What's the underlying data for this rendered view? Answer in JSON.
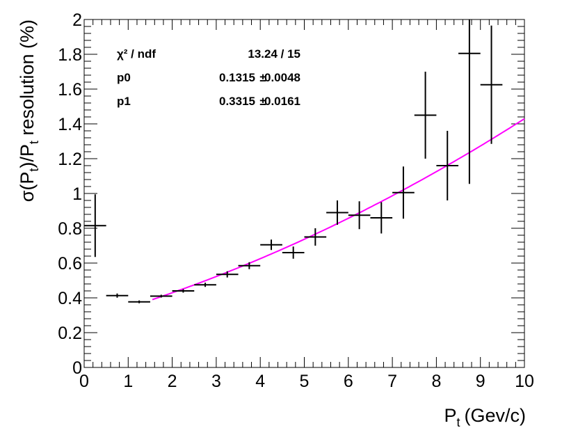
{
  "chart_data": {
    "type": "scatter",
    "xlabel": "P",
    "xlabel_sub": "t",
    "xlabel_unit": "(Gev/c)",
    "ylabel_parts": [
      "σ(P",
      "t",
      ")/P",
      "t",
      " resolution (%)"
    ],
    "xlim": [
      0,
      10
    ],
    "ylim": [
      0,
      2
    ],
    "x_ticks": [
      "0",
      "1",
      "2",
      "3",
      "4",
      "5",
      "6",
      "7",
      "8",
      "9",
      "10"
    ],
    "y_ticks": [
      "0",
      "0.2",
      "0.4",
      "0.6",
      "0.8",
      "1",
      "1.2",
      "1.4",
      "1.6",
      "1.8",
      "2"
    ],
    "x_tick_values": [
      0,
      1,
      2,
      3,
      4,
      5,
      6,
      7,
      8,
      9,
      10
    ],
    "y_tick_values": [
      0,
      0.2,
      0.4,
      0.6,
      0.8,
      1.0,
      1.2,
      1.4,
      1.6,
      1.8,
      2.0
    ],
    "grid": false,
    "points": [
      {
        "x": 0.25,
        "y": 0.815,
        "yerr": 0.18
      },
      {
        "x": 0.75,
        "y": 0.413,
        "yerr": 0.012
      },
      {
        "x": 1.25,
        "y": 0.377,
        "yerr": 0.008
      },
      {
        "x": 1.75,
        "y": 0.41,
        "yerr": 0.008
      },
      {
        "x": 2.25,
        "y": 0.44,
        "yerr": 0.01
      },
      {
        "x": 2.75,
        "y": 0.475,
        "yerr": 0.012
      },
      {
        "x": 3.25,
        "y": 0.535,
        "yerr": 0.018
      },
      {
        "x": 3.75,
        "y": 0.585,
        "yerr": 0.02
      },
      {
        "x": 4.25,
        "y": 0.705,
        "yerr": 0.03
      },
      {
        "x": 4.75,
        "y": 0.66,
        "yerr": 0.035
      },
      {
        "x": 5.25,
        "y": 0.75,
        "yerr": 0.05
      },
      {
        "x": 5.75,
        "y": 0.89,
        "yerr": 0.07
      },
      {
        "x": 6.25,
        "y": 0.875,
        "yerr": 0.08
      },
      {
        "x": 6.75,
        "y": 0.86,
        "yerr": 0.09
      },
      {
        "x": 7.25,
        "y": 1.005,
        "yerr": 0.15
      },
      {
        "x": 7.75,
        "y": 1.45,
        "yerr": 0.25
      },
      {
        "x": 8.25,
        "y": 1.16,
        "yerr": 0.2
      },
      {
        "x": 8.75,
        "y": 1.805,
        "yerr": 0.75
      },
      {
        "x": 9.25,
        "y": 1.625,
        "yerr": 0.34
      }
    ],
    "xerr": 0.25,
    "fit": {
      "color": "#ff00ff",
      "x_range": [
        1.55,
        10
      ],
      "p0": 0.1315,
      "p1": 0.3315
    },
    "stats": {
      "chi2_label": "χ² / ndf",
      "chi2_value": "13.24 / 15",
      "p0_label": "p0",
      "p0_value": "0.1315",
      "p0_err": "0.0048",
      "p1_label": "p1",
      "p1_value": "0.3315",
      "p1_err": "0.0161",
      "pm": "±"
    }
  }
}
